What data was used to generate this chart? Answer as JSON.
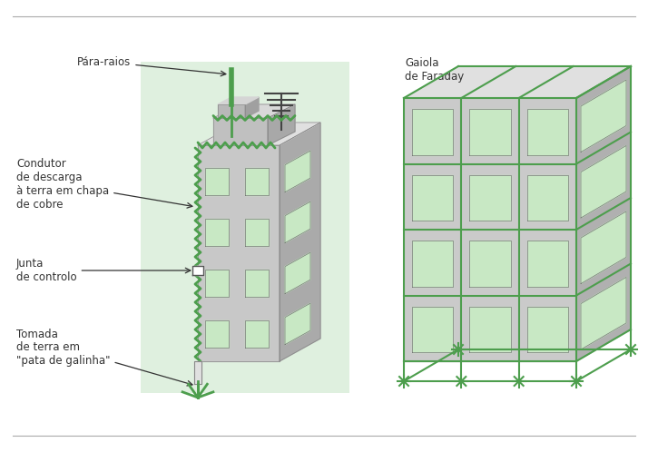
{
  "background_color": "#ffffff",
  "green_color": "#4d9e4d",
  "window_color": "#c8e8c4",
  "text_color": "#333333",
  "labels": {
    "para_raios": "Pára-raios",
    "condutor": "Condutor\nde descarga\nà terra em chapa\nde cobre",
    "junta": "Junta\nde controlo",
    "tomada": "Tomada\nde terra em\n\"pata de galinha\"",
    "gaiola": "Gaiola\nde Faraday"
  }
}
